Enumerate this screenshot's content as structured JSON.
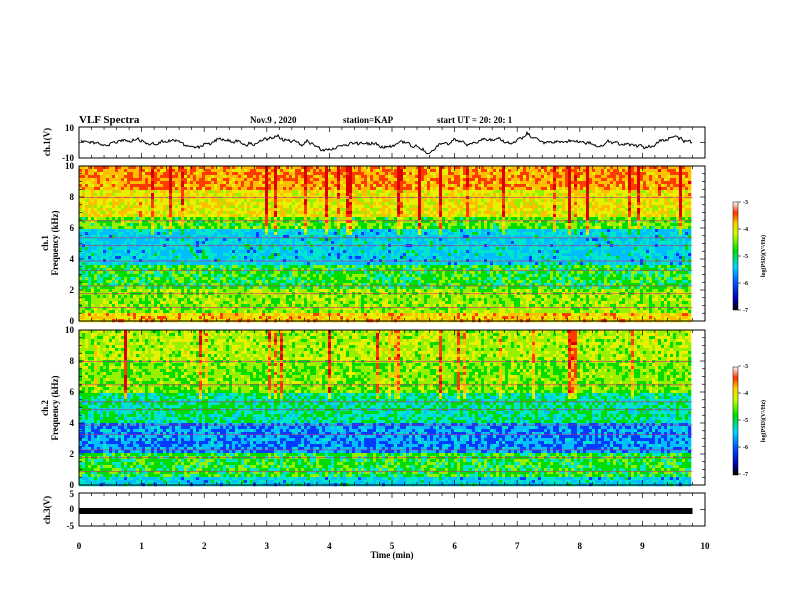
{
  "header": {
    "title": "VLF Spectra",
    "date": "Nov.9 , 2020",
    "station": "station=KAP",
    "start": "start UT = 20: 20: 1"
  },
  "chart_data": [
    {
      "type": "line",
      "ylabel": "ch.1(V)",
      "ylim": [
        -10,
        10
      ],
      "yticks": [
        "10",
        "-10"
      ],
      "xlim": [
        0,
        10
      ],
      "grid": false
    },
    {
      "type": "heatmap",
      "ylabel": "Frequency (kHz)",
      "ylabel_top": "ch.1",
      "ylim": [
        0,
        10
      ],
      "yticks": [
        "0",
        "2",
        "4",
        "6",
        "8",
        "10"
      ],
      "data_end_min": 9.8,
      "colorbar": {
        "label": "log(PSD)(V²/Hz)",
        "range": [
          -7,
          -3
        ],
        "ticks": [
          "-3",
          "-4",
          "-5",
          "-6",
          "-7"
        ]
      }
    },
    {
      "type": "heatmap",
      "ylabel": "Frequency (kHz)",
      "ylabel_top": "ch.2",
      "ylim": [
        0,
        10
      ],
      "yticks": [
        "0",
        "2",
        "4",
        "6",
        "8",
        "10"
      ],
      "data_end_min": 9.8,
      "colorbar": {
        "label": "log(PSD)(V²/Hz)",
        "range": [
          -7,
          -3
        ],
        "ticks": [
          "-3",
          "-4",
          "-5",
          "-6",
          "-7"
        ]
      }
    },
    {
      "type": "line",
      "ylabel": "ch.3(V)",
      "ylim": [
        -5,
        5
      ],
      "yticks": [
        "5",
        "0",
        "-5"
      ],
      "xlabel": "Time (min)",
      "xlim": [
        0,
        10
      ],
      "xticks": [
        "0",
        "1",
        "2",
        "3",
        "4",
        "5",
        "6",
        "7",
        "8",
        "9",
        "10"
      ]
    }
  ]
}
